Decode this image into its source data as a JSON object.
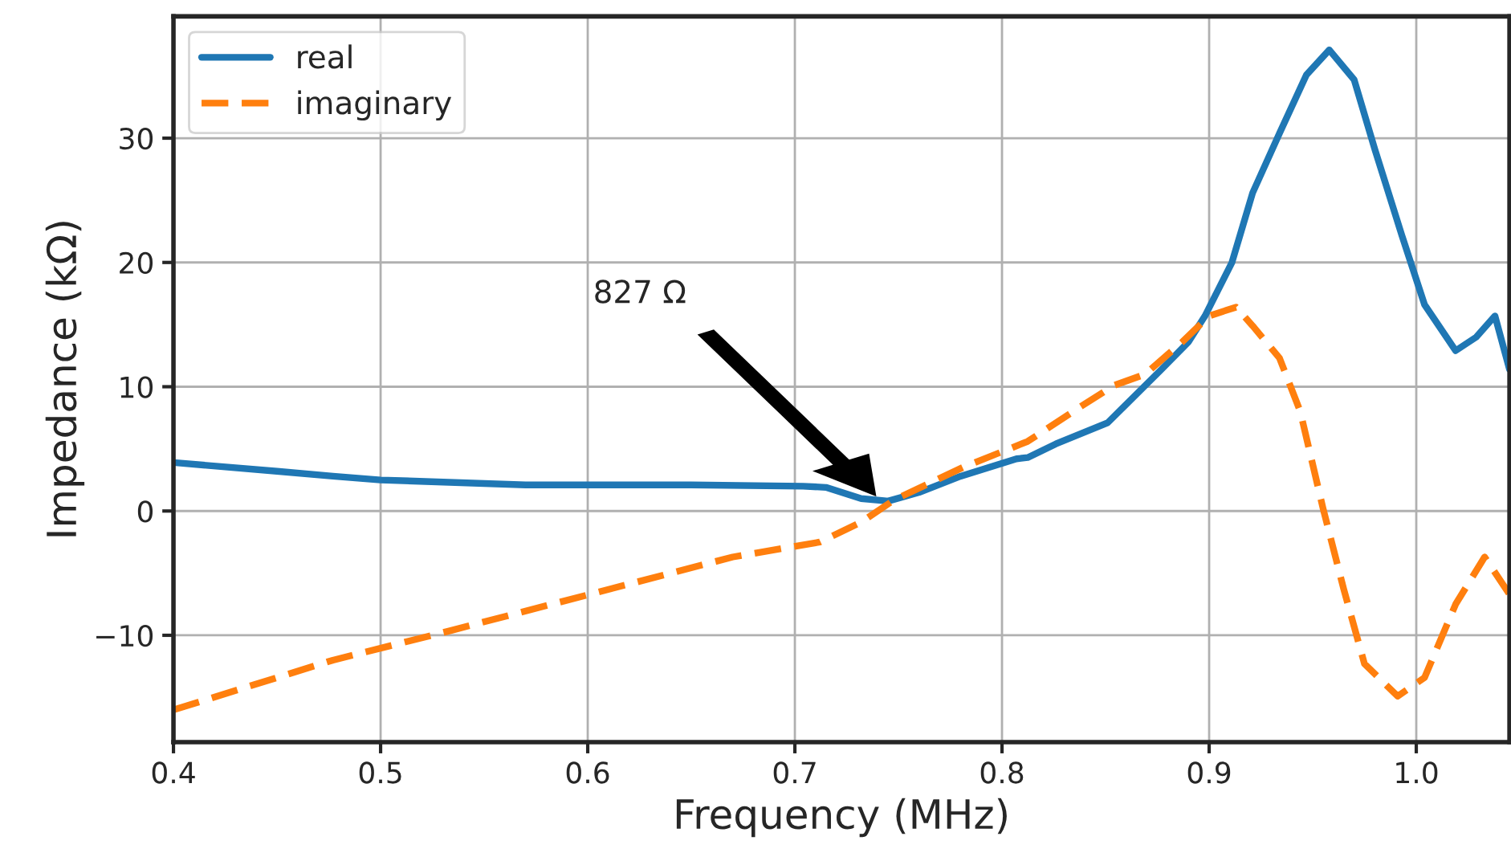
{
  "chart_data": {
    "type": "line",
    "xlabel": "Frequency (MHz)",
    "ylabel": "Impedance (kΩ)",
    "xlim": [
      0.4,
      1.045
    ],
    "ylim": [
      -18.6,
      39.8
    ],
    "xticks": [
      0.4,
      0.5,
      0.6,
      0.7,
      0.8,
      0.9,
      {
        "value": 1.0,
        "label": "1.0"
      }
    ],
    "yticks": [
      {
        "value": -10,
        "label": "−10"
      },
      0,
      10,
      20,
      30
    ],
    "grid": true,
    "legend": "top left",
    "annotations": [
      "827 Ω"
    ],
    "series": [
      {
        "name": "real",
        "color": "#1f77b4",
        "line_style": "solid",
        "x": [
          0.4,
          0.45,
          0.477,
          0.5,
          0.57,
          0.65,
          0.704,
          0.715,
          0.732,
          0.745,
          0.76,
          0.78,
          0.807,
          0.8124,
          0.826,
          0.851,
          0.877,
          0.89,
          0.898,
          0.911,
          0.921,
          0.934,
          0.947,
          0.958,
          0.97,
          0.98,
          0.993,
          1.004,
          1.019,
          1.029,
          1.038,
          1.045
        ],
        "values": [
          3.9,
          3.2,
          2.8,
          2.5,
          2.1,
          2.1,
          2.0,
          1.9,
          1.0,
          0.8,
          1.5,
          2.8,
          4.2,
          4.3,
          5.4,
          7.1,
          11.4,
          13.6,
          15.7,
          20.0,
          25.6,
          30.4,
          35.1,
          37.1,
          34.7,
          29.1,
          22.2,
          16.6,
          12.9,
          14.0,
          15.7,
          11.4
        ]
      },
      {
        "name": "imaginary",
        "color": "#ff7f0e",
        "line_style": "dashed",
        "x": [
          0.4,
          0.477,
          0.532,
          0.601,
          0.67,
          0.712,
          0.732,
          0.748,
          0.781,
          0.8124,
          0.838,
          0.854,
          0.869,
          0.887,
          0.9,
          0.913,
          0.921,
          0.934,
          0.944,
          0.955,
          0.965,
          0.975,
          0.991,
          1.004,
          1.019,
          1.033,
          1.045
        ],
        "values": [
          -16.0,
          -12.0,
          -9.7,
          -6.7,
          -3.7,
          -2.5,
          -0.9,
          0.9,
          3.5,
          5.6,
          8.4,
          10.1,
          11.0,
          13.6,
          15.7,
          16.4,
          14.9,
          12.3,
          8.0,
          0.2,
          -6.3,
          -12.3,
          -14.9,
          -13.4,
          -7.5,
          -3.7,
          -6.7
        ]
      }
    ]
  }
}
